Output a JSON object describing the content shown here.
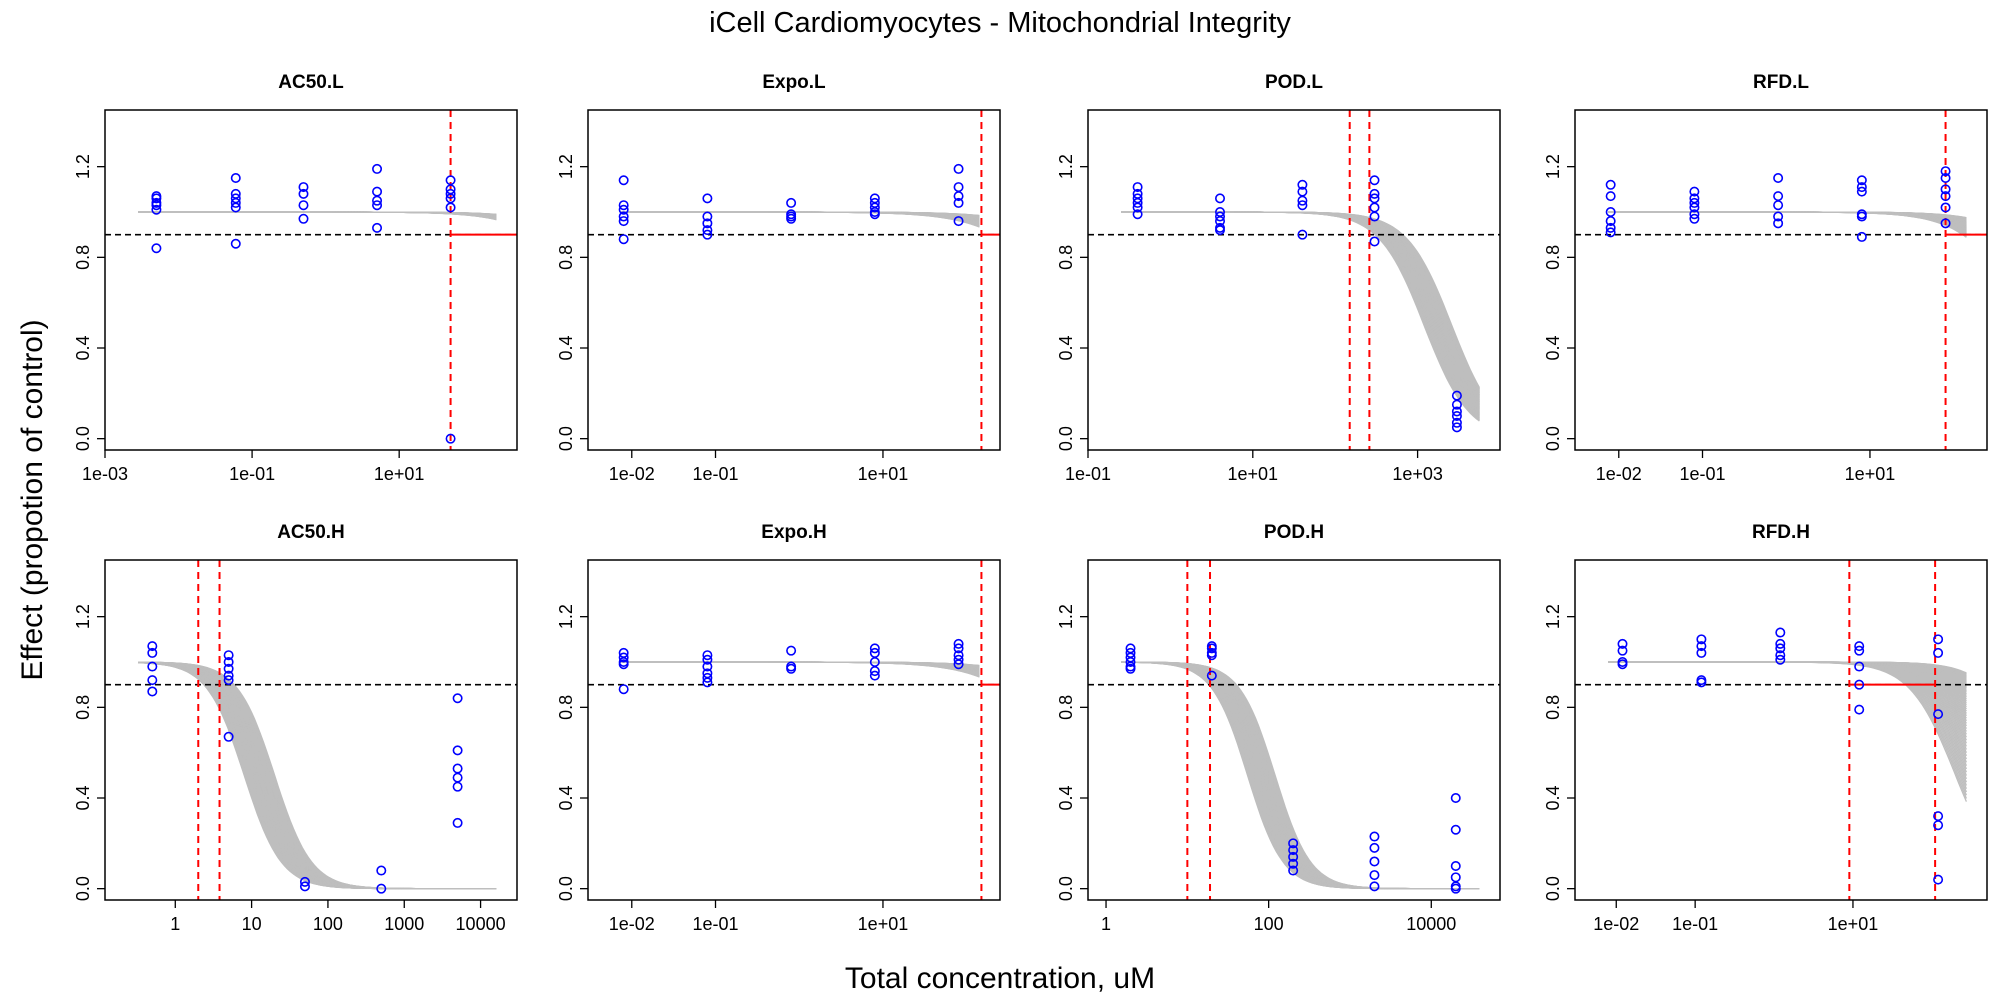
{
  "figure": {
    "title": "iCell Cardiomyocytes -  Mitochondrial Integrity",
    "xlabel": "Total concentration, uM",
    "ylabel": "Effect (propotion of control)"
  },
  "colors": {
    "points": "#0000ff",
    "curves": "#bebebe",
    "threshold": "#000000",
    "pod_marker": "#ff0000"
  },
  "chart_data": [
    {
      "type": "scatter",
      "title": "AC50.L",
      "x_scale": "log",
      "xlim": [
        0.001,
        400
      ],
      "ylim": [
        0,
        1.4
      ],
      "x_ticks": [
        {
          "v": 0.001,
          "label": "1e-03"
        },
        {
          "v": 0.1,
          "label": "1e-01"
        },
        {
          "v": 10,
          "label": "1e+01"
        }
      ],
      "y_ticks": [
        0.0,
        0.4,
        0.8,
        1.2
      ],
      "threshold_y": 0.9,
      "vlines": [
        50
      ],
      "hline_from": 50,
      "curves": {
        "top": 1.0,
        "bottom": 0.0,
        "hill": 1.0,
        "ec50": [
          20000,
          6000
        ],
        "min_at_end": 0.87
      },
      "points": [
        {
          "x": 0.005,
          "y": [
            1.07,
            1.06,
            1.04,
            1.03,
            1.01,
            0.84
          ]
        },
        {
          "x": 0.06,
          "y": [
            1.15,
            1.08,
            1.06,
            1.04,
            1.02,
            0.86
          ]
        },
        {
          "x": 0.5,
          "y": [
            1.11,
            1.08,
            1.03,
            0.97
          ]
        },
        {
          "x": 5,
          "y": [
            1.19,
            1.09,
            1.05,
            1.03,
            0.93
          ]
        },
        {
          "x": 50,
          "y": [
            1.14,
            1.1,
            1.08,
            1.06,
            1.02,
            0.0
          ]
        }
      ]
    },
    {
      "type": "scatter",
      "title": "Expo.L",
      "x_scale": "log",
      "xlim": [
        0.003,
        250
      ],
      "ylim": [
        0,
        1.4
      ],
      "x_ticks": [
        {
          "v": 0.01,
          "label": "1e-02"
        },
        {
          "v": 0.1,
          "label": "1e-01"
        },
        {
          "v": 10,
          "label": "1e+01"
        }
      ],
      "y_ticks": [
        0.0,
        0.4,
        0.8,
        1.2
      ],
      "threshold_y": 0.9,
      "vlines": [
        150
      ],
      "hline_from": 150,
      "curves": {
        "top": 1.0,
        "bottom": 0.0,
        "hill": 1.0,
        "ec50": [
          9000,
          2000
        ],
        "min_at_end": 0.87
      },
      "points": [
        {
          "x": 0.008,
          "y": [
            1.14,
            1.03,
            1.01,
            0.98,
            0.96,
            0.88
          ]
        },
        {
          "x": 0.08,
          "y": [
            1.06,
            0.98,
            0.95,
            0.92,
            0.9
          ]
        },
        {
          "x": 0.8,
          "y": [
            1.04,
            0.99,
            0.98,
            0.97
          ]
        },
        {
          "x": 8,
          "y": [
            1.06,
            1.04,
            1.02,
            1.0,
            0.99
          ]
        },
        {
          "x": 80,
          "y": [
            1.19,
            1.11,
            1.07,
            1.04,
            0.96
          ]
        }
      ]
    },
    {
      "type": "scatter",
      "title": "POD.L",
      "x_scale": "log",
      "xlim": [
        0.1,
        10000
      ],
      "ylim": [
        0,
        1.4
      ],
      "x_ticks": [
        {
          "v": 0.1,
          "label": "1e-01"
        },
        {
          "v": 10,
          "label": "1e+01"
        },
        {
          "v": 1000,
          "label": "1e+03"
        }
      ],
      "y_ticks": [
        0.0,
        0.4,
        0.8,
        1.2
      ],
      "threshold_y": 0.9,
      "vlines": [
        150,
        260
      ],
      "hline_from": null,
      "curves": {
        "top": 1.0,
        "bottom": 0.0,
        "hill": 1.6,
        "ec50": [
          2600,
          1200
        ],
        "min_at_end": 0.0
      },
      "points": [
        {
          "x": 0.4,
          "y": [
            1.11,
            1.08,
            1.06,
            1.04,
            1.02,
            0.99
          ]
        },
        {
          "x": 4,
          "y": [
            1.06,
            1.0,
            0.98,
            0.96,
            0.93,
            0.92
          ]
        },
        {
          "x": 40,
          "y": [
            1.12,
            1.09,
            1.05,
            1.03,
            0.9
          ]
        },
        {
          "x": 300,
          "y": [
            1.14,
            1.08,
            1.06,
            1.02,
            0.98,
            0.87
          ]
        },
        {
          "x": 3000,
          "y": [
            0.19,
            0.15,
            0.12,
            0.1,
            0.07,
            0.05
          ]
        }
      ]
    },
    {
      "type": "scatter",
      "title": "RFD.L",
      "x_scale": "log",
      "xlim": [
        0.003,
        250
      ],
      "ylim": [
        0,
        1.4
      ],
      "x_ticks": [
        {
          "v": 0.01,
          "label": "1e-02"
        },
        {
          "v": 0.1,
          "label": "1e-01"
        },
        {
          "v": 10,
          "label": "1e+01"
        }
      ],
      "y_ticks": [
        0.0,
        0.4,
        0.8,
        1.2
      ],
      "threshold_y": 0.9,
      "vlines": [
        80
      ],
      "hline_from": 80,
      "curves": {
        "top": 1.0,
        "bottom": 0.0,
        "hill": 1.2,
        "ec50": [
          3000,
          800
        ],
        "min_at_end": 0.8
      },
      "points": [
        {
          "x": 0.008,
          "y": [
            1.12,
            1.07,
            1.0,
            0.96,
            0.93,
            0.91
          ]
        },
        {
          "x": 0.08,
          "y": [
            1.09,
            1.06,
            1.04,
            1.02,
            0.99,
            0.97
          ]
        },
        {
          "x": 0.8,
          "y": [
            1.15,
            1.07,
            1.03,
            0.98,
            0.95
          ]
        },
        {
          "x": 8,
          "y": [
            1.14,
            1.11,
            1.09,
            0.99,
            0.98,
            0.89
          ]
        },
        {
          "x": 80,
          "y": [
            1.18,
            1.15,
            1.1,
            1.07,
            1.02,
            0.95
          ]
        }
      ]
    },
    {
      "type": "scatter",
      "title": "AC50.H",
      "x_scale": "log",
      "xlim": [
        0.12,
        30000
      ],
      "ylim": [
        0,
        1.4
      ],
      "x_ticks": [
        {
          "v": 1,
          "label": "1"
        },
        {
          "v": 10,
          "label": "10"
        },
        {
          "v": 100,
          "label": "100"
        },
        {
          "v": 1000,
          "label": "1000"
        },
        {
          "v": 10000,
          "label": "10000"
        }
      ],
      "y_ticks": [
        0.0,
        0.4,
        0.8,
        1.2
      ],
      "threshold_y": 0.9,
      "vlines": [
        2,
        3.8
      ],
      "hline_from": null,
      "curves": {
        "top": 1.0,
        "bottom": 0.0,
        "hill": 1.8,
        "ec50": [
          8,
          20
        ],
        "min_at_end": 0.0
      },
      "points": [
        {
          "x": 0.5,
          "y": [
            1.07,
            1.04,
            0.98,
            0.92,
            0.87
          ]
        },
        {
          "x": 5,
          "y": [
            1.03,
            1.0,
            0.97,
            0.94,
            0.92,
            0.67
          ]
        },
        {
          "x": 50,
          "y": [
            0.03,
            0.01
          ]
        },
        {
          "x": 500,
          "y": [
            0.08,
            0.0
          ]
        },
        {
          "x": 5000,
          "y": [
            0.84,
            0.61,
            0.53,
            0.49,
            0.45,
            0.29
          ]
        }
      ]
    },
    {
      "type": "scatter",
      "title": "Expo.H",
      "x_scale": "log",
      "xlim": [
        0.003,
        250
      ],
      "ylim": [
        0,
        1.4
      ],
      "x_ticks": [
        {
          "v": 0.01,
          "label": "1e-02"
        },
        {
          "v": 0.1,
          "label": "1e-01"
        },
        {
          "v": 10,
          "label": "1e+01"
        }
      ],
      "y_ticks": [
        0.0,
        0.4,
        0.8,
        1.2
      ],
      "threshold_y": 0.9,
      "vlines": [
        150
      ],
      "hline_from": 150,
      "curves": {
        "top": 1.0,
        "bottom": 0.0,
        "hill": 1.0,
        "ec50": [
          9000,
          2000
        ],
        "min_at_end": 0.87
      },
      "points": [
        {
          "x": 0.008,
          "y": [
            1.04,
            1.02,
            1.0,
            0.99,
            0.88
          ]
        },
        {
          "x": 0.08,
          "y": [
            1.03,
            1.01,
            0.98,
            0.95,
            0.93,
            0.91
          ]
        },
        {
          "x": 0.8,
          "y": [
            1.05,
            0.98,
            0.97
          ]
        },
        {
          "x": 8,
          "y": [
            1.06,
            1.04,
            1.0,
            0.96,
            0.94
          ]
        },
        {
          "x": 80,
          "y": [
            1.08,
            1.06,
            1.03,
            1.01,
            0.99
          ]
        }
      ]
    },
    {
      "type": "scatter",
      "title": "POD.H",
      "x_scale": "log",
      "xlim": [
        0.6,
        70000
      ],
      "ylim": [
        0,
        1.4
      ],
      "x_ticks": [
        {
          "v": 1,
          "label": "1"
        },
        {
          "v": 100,
          "label": "100"
        },
        {
          "v": 10000,
          "label": "10000"
        }
      ],
      "y_ticks": [
        0.0,
        0.4,
        0.8,
        1.2
      ],
      "threshold_y": 0.9,
      "vlines": [
        10,
        19
      ],
      "hline_from": null,
      "curves": {
        "top": 1.0,
        "bottom": 0.0,
        "hill": 2.0,
        "ec50": [
          55,
          120
        ],
        "min_at_end": 0.0
      },
      "points": [
        {
          "x": 2,
          "y": [
            1.06,
            1.04,
            1.02,
            1.0,
            0.98,
            0.97
          ]
        },
        {
          "x": 20,
          "y": [
            1.07,
            1.06,
            1.04,
            1.03,
            0.94
          ]
        },
        {
          "x": 200,
          "y": [
            0.2,
            0.17,
            0.14,
            0.11,
            0.08
          ]
        },
        {
          "x": 2000,
          "y": [
            0.23,
            0.18,
            0.12,
            0.06,
            0.01
          ]
        },
        {
          "x": 20000,
          "y": [
            0.4,
            0.26,
            0.1,
            0.05,
            0.01,
            0.0
          ]
        }
      ]
    },
    {
      "type": "scatter",
      "title": "RFD.H",
      "x_scale": "log",
      "xlim": [
        0.003,
        500
      ],
      "ylim": [
        0,
        1.4
      ],
      "x_ticks": [
        {
          "v": 0.01,
          "label": "1e-02"
        },
        {
          "v": 0.1,
          "label": "1e-01"
        },
        {
          "v": 10,
          "label": "1e+01"
        }
      ],
      "y_ticks": [
        0.0,
        0.4,
        0.8,
        1.2
      ],
      "threshold_y": 0.9,
      "vlines": [
        9,
        110
      ],
      "hline_from": 9,
      "hline_to": 110,
      "curves": {
        "top": 1.0,
        "bottom": 0.0,
        "hill": 1.5,
        "ec50": [
          200,
          2000
        ],
        "min_at_end": 0.0
      },
      "points": [
        {
          "x": 0.012,
          "y": [
            1.08,
            1.05,
            1.0,
            0.99
          ]
        },
        {
          "x": 0.12,
          "y": [
            1.1,
            1.07,
            1.04,
            0.92,
            0.91
          ]
        },
        {
          "x": 1.2,
          "y": [
            1.13,
            1.08,
            1.06,
            1.03,
            1.01
          ]
        },
        {
          "x": 12,
          "y": [
            1.07,
            1.05,
            0.98,
            0.9,
            0.79
          ]
        },
        {
          "x": 120,
          "y": [
            1.1,
            1.04,
            0.77,
            0.32,
            0.28,
            0.04
          ]
        }
      ]
    }
  ]
}
